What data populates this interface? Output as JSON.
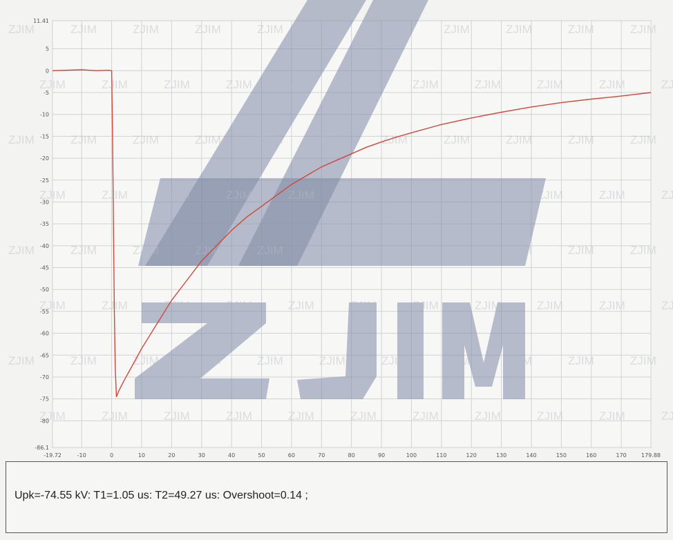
{
  "brand": {
    "watermark_text": "ZJIM",
    "watermark_color": "#7f8aa6",
    "trace_color": "#d0473a"
  },
  "chart_data": {
    "type": "line",
    "title": "",
    "xlabel": "",
    "ylabel": "",
    "xlim": [
      -19.72,
      179.88
    ],
    "ylim": [
      -86.1,
      11.41
    ],
    "grid": true,
    "legend": "none",
    "x_ticks": [
      "-19.72",
      "-10",
      "0",
      "10",
      "20",
      "30",
      "40",
      "50",
      "60",
      "70",
      "80",
      "90",
      "100",
      "110",
      "120",
      "130",
      "140",
      "150",
      "160",
      "170",
      "179.88"
    ],
    "y_ticks": [
      "11.41",
      "5",
      "0",
      "-5",
      "-10",
      "-15",
      "-20",
      "-25",
      "-30",
      "-35",
      "-40",
      "-45",
      "-50",
      "-55",
      "-60",
      "-65",
      "-70",
      "-75",
      "-80",
      "-86.1"
    ],
    "series": [
      {
        "name": "",
        "x": [
          -19.72,
          -10,
          -5,
          -1,
          0,
          0.3,
          0.6,
          0.9,
          1.2,
          1.6,
          2.5,
          4,
          6,
          8,
          10,
          15,
          20,
          25,
          30,
          35,
          40,
          45,
          50,
          55,
          60,
          65,
          70,
          75,
          80,
          85,
          90,
          95,
          100,
          110,
          120,
          130,
          140,
          150,
          160,
          170,
          179.88
        ],
        "y": [
          0,
          0.2,
          0,
          0.1,
          0,
          -15,
          -35,
          -55,
          -68,
          -74.55,
          -73,
          -71,
          -68.5,
          -66,
          -63.5,
          -58,
          -52.5,
          -48,
          -43.5,
          -40,
          -36.5,
          -33.5,
          -31,
          -28.5,
          -26,
          -24,
          -22,
          -20.5,
          -19,
          -17.5,
          -16.3,
          -15.2,
          -14.2,
          -12.3,
          -10.8,
          -9.5,
          -8.3,
          -7.3,
          -6.5,
          -5.8,
          -5
        ]
      }
    ]
  },
  "status": {
    "text": "Upk=-74.55 kV: T1=1.05 us: T2=49.27 us: Overshoot=0.14 ;"
  }
}
